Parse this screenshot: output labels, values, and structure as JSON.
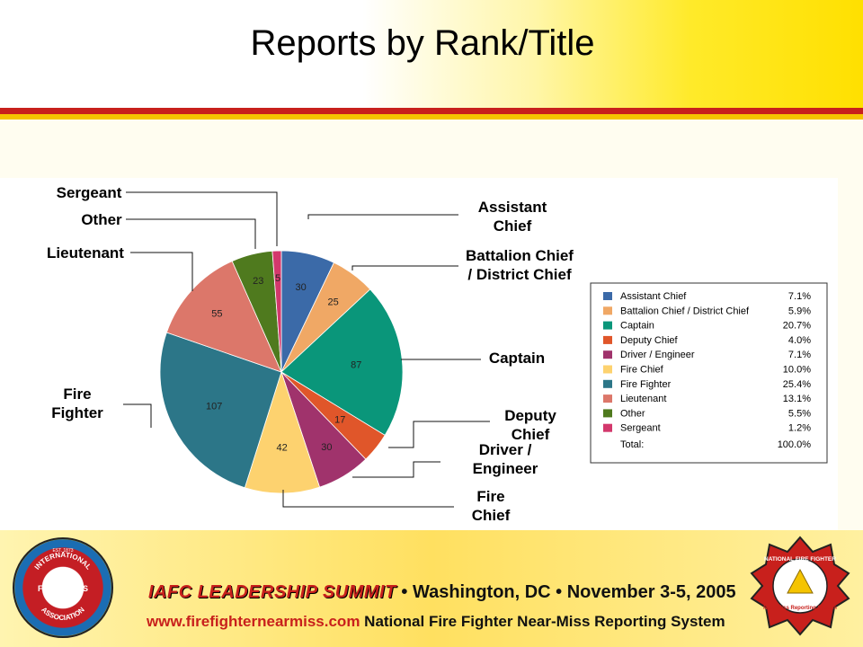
{
  "slide": {
    "title": "Reports by Rank/Title"
  },
  "chart_data": {
    "type": "pie",
    "title": "",
    "categories": [
      "Assistant Chief",
      "Battalion Chief / District Chief",
      "Captain",
      "Deputy Chief",
      "Driver / Engineer",
      "Fire Chief",
      "Fire Fighter",
      "Lieutenant",
      "Other",
      "Sergeant"
    ],
    "values": [
      30,
      25,
      87,
      17,
      30,
      42,
      107,
      55,
      23,
      5
    ],
    "colors": [
      "#3b6aa8",
      "#f0a865",
      "#0a967a",
      "#e0562a",
      "#a0336c",
      "#fdd26f",
      "#2c7688",
      "#dc776a",
      "#4f7a1e",
      "#d3386c"
    ],
    "callouts": [
      {
        "lines": [
          "Assistant",
          "Chief"
        ]
      },
      {
        "lines": [
          "Battalion Chief",
          "/ District Chief"
        ]
      },
      {
        "lines": [
          "Captain"
        ]
      },
      {
        "lines": [
          "Deputy",
          "Chief"
        ]
      },
      {
        "lines": [
          "Driver /",
          "Engineer"
        ]
      },
      {
        "lines": [
          "Fire",
          "Chief"
        ]
      },
      {
        "lines": [
          "Fire",
          "Fighter"
        ]
      },
      {
        "lines": [
          "Lieutenant"
        ]
      },
      {
        "lines": [
          "Other"
        ]
      },
      {
        "lines": [
          "Sergeant"
        ]
      }
    ],
    "legend": {
      "placement": "right",
      "entries": [
        {
          "label": "Assistant Chief",
          "percent": "7.1%"
        },
        {
          "label": "Battalion Chief / District Chief",
          "percent": "5.9%"
        },
        {
          "label": "Captain",
          "percent": "20.7%"
        },
        {
          "label": "Deputy Chief",
          "percent": "4.0%"
        },
        {
          "label": "Driver / Engineer",
          "percent": "7.1%"
        },
        {
          "label": "Fire Chief",
          "percent": "10.0%"
        },
        {
          "label": "Fire Fighter",
          "percent": "25.4%"
        },
        {
          "label": "Lieutenant",
          "percent": "13.1%"
        },
        {
          "label": "Other",
          "percent": "5.5%"
        },
        {
          "label": "Sergeant",
          "percent": "1.2%"
        }
      ],
      "total_label": "Total:",
      "total_percent": "100.0%"
    }
  },
  "footer": {
    "left_logo_icon": "iafc-seal-icon",
    "right_logo_icon": "near-miss-maltese-cross-icon",
    "left_logo_text": [
      "INTERNATIONAL",
      "FIRE CHIEFS",
      "ASSOCIATION",
      "EST. 1873"
    ],
    "right_logo_text": [
      "NATIONAL FIRE FIGHTER",
      "Near-Miss Reporting System"
    ],
    "summit_brand": "IAFC LEADERSHIP SUMMIT",
    "summit_rest": " • Washington, DC • November 3-5, 2005",
    "url": "www.firefighternearmiss.com",
    "org": " National Fire Fighter Near-Miss Reporting System"
  }
}
